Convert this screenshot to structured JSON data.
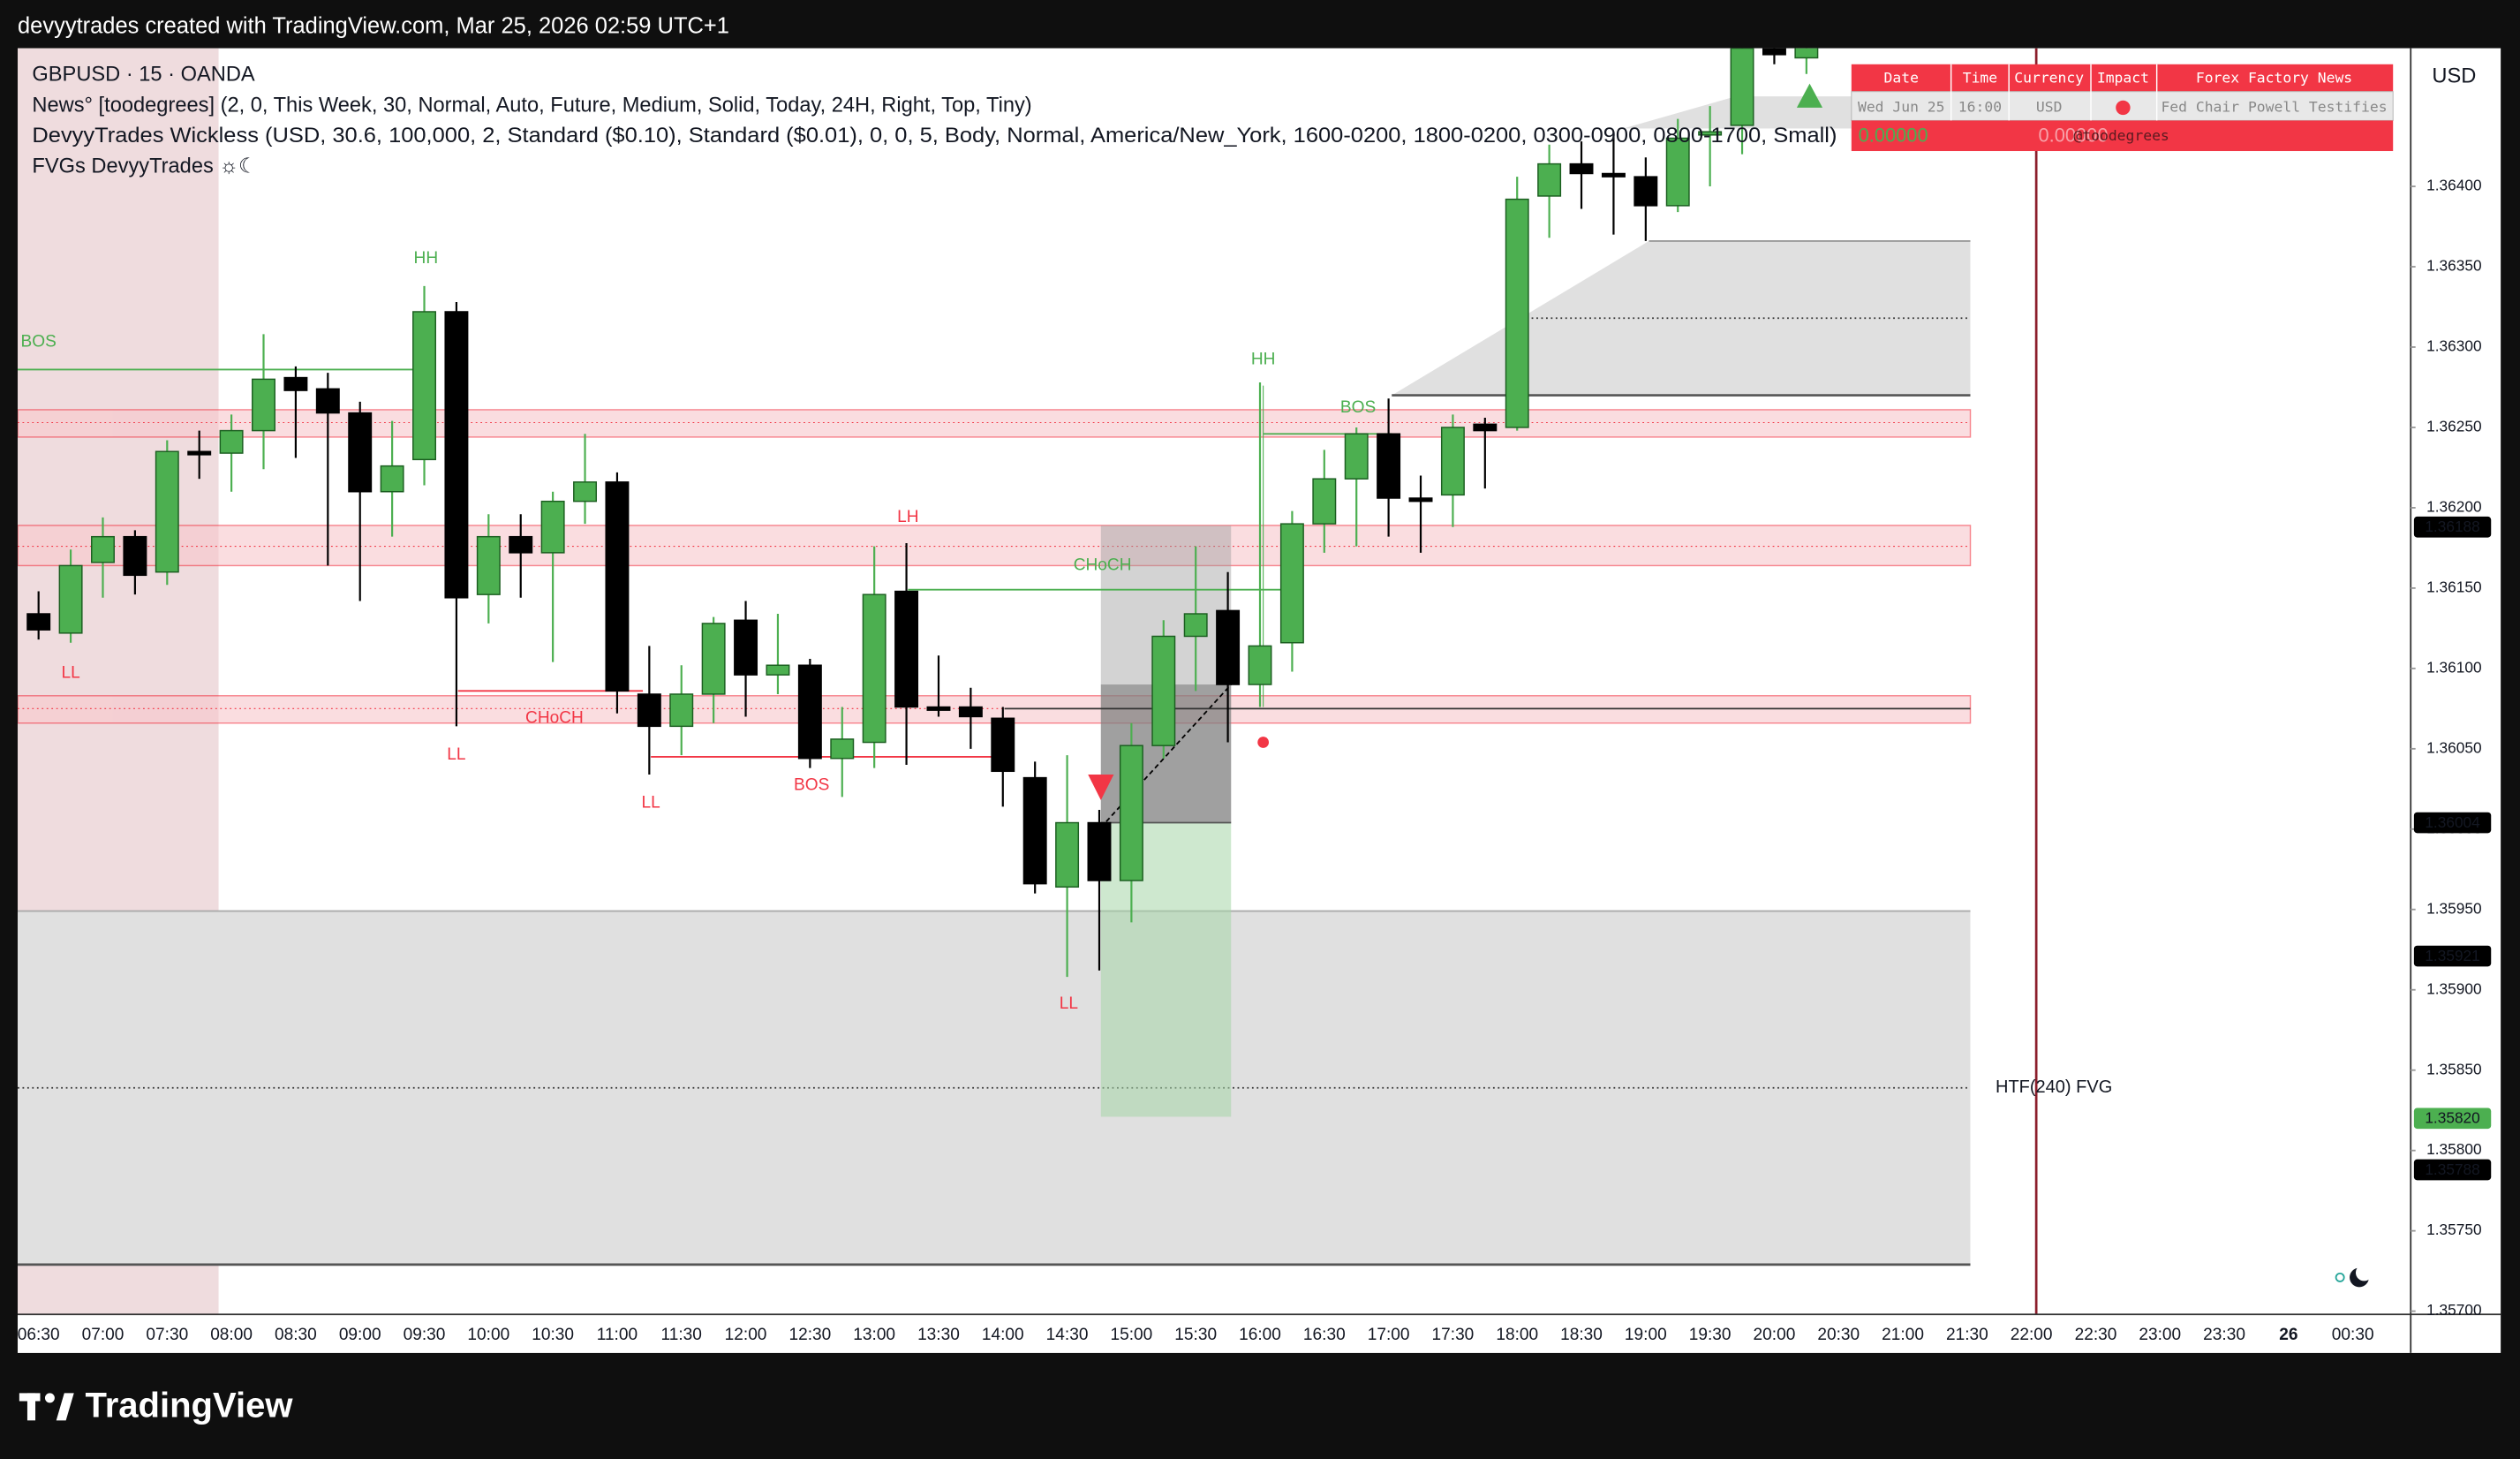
{
  "header": {
    "title": "devyytrades created with TradingView.com, Mar 25, 2026 02:59 UTC+1"
  },
  "legend": [
    "GBPUSD · 15 · OANDA",
    "News° [toodegrees] (2, 0, This Week, 30, Normal, Auto, Future, Medium, Solid, Today, 24H, Right, Top, Tiny)",
    "DevyyTrades Wickless (USD, 30.6, 100,000, 2, Standard ($0.10), Standard ($0.01), 0, 0, 5, Body, Normal, America/New_York, 1600-0200, 1800-0200, 0300-0900, 0800-1700, Small)",
    "FVGs DevyyTrades ☼☾"
  ],
  "chart_data": {
    "type": "candlestick",
    "currency": "USD",
    "up_color": "#4caf50",
    "down_color": "#000000",
    "time_labels": [
      "06:30",
      "07:00",
      "07:30",
      "08:00",
      "08:30",
      "09:00",
      "09:30",
      "10:00",
      "10:30",
      "11:00",
      "11:30",
      "12:00",
      "12:30",
      "13:00",
      "13:30",
      "14:00",
      "14:30",
      "15:00",
      "15:30",
      "16:00",
      "16:30",
      "17:00",
      "17:30",
      "18:00",
      "18:30",
      "19:00",
      "19:30",
      "20:00",
      "20:30",
      "21:00",
      "21:30",
      "22:00",
      "22:30",
      "23:00",
      "23:30",
      "26",
      "00:30"
    ],
    "open": [
      1.36134,
      1.36122,
      1.36166,
      1.36182,
      1.3616,
      1.36235,
      1.36234,
      1.36248,
      1.36281,
      1.36274,
      1.36259,
      1.3621,
      1.3623,
      1.36322,
      1.36146,
      1.36182,
      1.36172,
      1.36204,
      1.36216,
      1.36084,
      1.36064,
      1.36084,
      1.3613,
      1.36096,
      1.36102,
      1.36044,
      1.36054,
      1.36148,
      1.36076,
      1.36076,
      1.36069,
      1.36032,
      1.35964,
      1.36004,
      1.35968,
      1.36052,
      1.3612,
      1.36136,
      1.3609,
      1.36116,
      1.3619,
      1.36218,
      1.36246,
      1.36206,
      1.36208,
      1.36252,
      1.3625,
      1.36394,
      1.36414,
      1.36408,
      1.36406,
      1.36388,
      1.36432,
      1.36438,
      1.3649,
      1.3648
    ],
    "high": [
      1.36148,
      1.36174,
      1.36194,
      1.36186,
      1.36242,
      1.36248,
      1.36258,
      1.36308,
      1.36288,
      1.36284,
      1.36266,
      1.36254,
      1.36338,
      1.36328,
      1.36196,
      1.36196,
      1.3621,
      1.36246,
      1.36222,
      1.36114,
      1.36102,
      1.36132,
      1.36142,
      1.36134,
      1.36106,
      1.36076,
      1.36176,
      1.36178,
      1.36108,
      1.36088,
      1.36076,
      1.36042,
      1.36046,
      1.36012,
      1.36066,
      1.3613,
      1.36176,
      1.3616,
      1.36278,
      1.36198,
      1.36236,
      1.3625,
      1.36268,
      1.3622,
      1.36258,
      1.36256,
      1.36406,
      1.36426,
      1.36428,
      1.36432,
      1.36418,
      1.36442,
      1.3645,
      1.365,
      1.365,
      1.36494
    ],
    "low": [
      1.36118,
      1.36116,
      1.36144,
      1.36146,
      1.36152,
      1.36218,
      1.3621,
      1.36224,
      1.36231,
      1.36164,
      1.36142,
      1.36182,
      1.36214,
      1.36064,
      1.36128,
      1.36144,
      1.36104,
      1.3619,
      1.36072,
      1.36034,
      1.36046,
      1.36066,
      1.3607,
      1.36084,
      1.36038,
      1.3602,
      1.36038,
      1.3604,
      1.3607,
      1.3605,
      1.36014,
      1.3596,
      1.35908,
      1.35912,
      1.35942,
      1.36044,
      1.36086,
      1.36054,
      1.36076,
      1.36098,
      1.36172,
      1.36176,
      1.36182,
      1.36172,
      1.36188,
      1.36212,
      1.36248,
      1.36368,
      1.36386,
      1.3637,
      1.36366,
      1.36384,
      1.364,
      1.3642,
      1.36476,
      1.3647
    ],
    "close": [
      1.36124,
      1.36164,
      1.36182,
      1.36158,
      1.36235,
      1.36233,
      1.36248,
      1.3628,
      1.36273,
      1.36259,
      1.3621,
      1.36226,
      1.36322,
      1.36144,
      1.36182,
      1.36172,
      1.36204,
      1.36216,
      1.36086,
      1.36064,
      1.36084,
      1.36128,
      1.36096,
      1.36102,
      1.36044,
      1.36056,
      1.36146,
      1.36076,
      1.36074,
      1.3607,
      1.36036,
      1.35966,
      1.36004,
      1.35968,
      1.36052,
      1.3612,
      1.36134,
      1.3609,
      1.36114,
      1.3619,
      1.36218,
      1.36246,
      1.36206,
      1.36204,
      1.3625,
      1.36248,
      1.36392,
      1.36414,
      1.36408,
      1.36406,
      1.36388,
      1.3643,
      1.36434,
      1.36486,
      1.36482,
      1.36488
    ],
    "ylim": [
      1.35698,
      1.36486
    ],
    "yticks": [
      {
        "value": 1.357,
        "label": "1.35700"
      },
      {
        "value": 1.3575,
        "label": "1.35750"
      },
      {
        "value": 1.358,
        "label": "1.35800"
      },
      {
        "value": 1.3585,
        "label": "1.35850"
      },
      {
        "value": 1.359,
        "label": "1.35900"
      },
      {
        "value": 1.3595,
        "label": "1.35950"
      },
      {
        "value": 1.36,
        "label": "1.36000"
      },
      {
        "value": 1.3605,
        "label": "1.36050"
      },
      {
        "value": 1.361,
        "label": "1.36100"
      },
      {
        "value": 1.3615,
        "label": "1.36150"
      },
      {
        "value": 1.362,
        "label": "1.36200"
      },
      {
        "value": 1.3625,
        "label": "1.36250"
      },
      {
        "value": 1.363,
        "label": "1.36300"
      },
      {
        "value": 1.3635,
        "label": "1.36350"
      },
      {
        "value": 1.364,
        "label": "1.36400"
      }
    ],
    "price_labels": [
      {
        "value": 1.36188,
        "label": "1.36188",
        "color": "#000000"
      },
      {
        "value": 1.36004,
        "label": "1.36004",
        "color": "#000000"
      },
      {
        "value": 1.35921,
        "label": "1.35921",
        "color": "#000000"
      },
      {
        "value": 1.3582,
        "label": "1.35820",
        "color": "#4caf50"
      },
      {
        "value": 1.35788,
        "label": "1.35788",
        "color": "#000000"
      }
    ]
  },
  "annotations": [
    {
      "text": "HH",
      "color": "#4caf50"
    },
    {
      "text": "BOS",
      "color": "#4caf50"
    },
    {
      "text": "LL",
      "color": "#f23645"
    },
    {
      "text": "LL",
      "color": "#f23645"
    },
    {
      "text": "CHoCH",
      "color": "#f23645"
    },
    {
      "text": "LL",
      "color": "#f23645"
    },
    {
      "text": "BOS",
      "color": "#f23645"
    },
    {
      "text": "LH",
      "color": "#f23645"
    },
    {
      "text": "CHoCH",
      "color": "#4caf50"
    },
    {
      "text": "LL",
      "color": "#f23645"
    },
    {
      "text": "HH",
      "color": "#4caf50"
    },
    {
      "text": "BOS",
      "color": "#4caf50"
    },
    {
      "text": "HTF(240) FVG",
      "color": "#131722"
    }
  ],
  "news_table": {
    "columns": [
      "Date",
      "Time",
      "Currency",
      "Impact",
      "Forex Factory News"
    ],
    "row": [
      "Wed Jun 25",
      "16:00",
      "USD",
      "Fed Chair Powell Testifies"
    ],
    "footer": [
      "0.00000",
      "0.00000",
      "@toodegrees"
    ]
  },
  "footer": {
    "brand": "TradingView"
  }
}
